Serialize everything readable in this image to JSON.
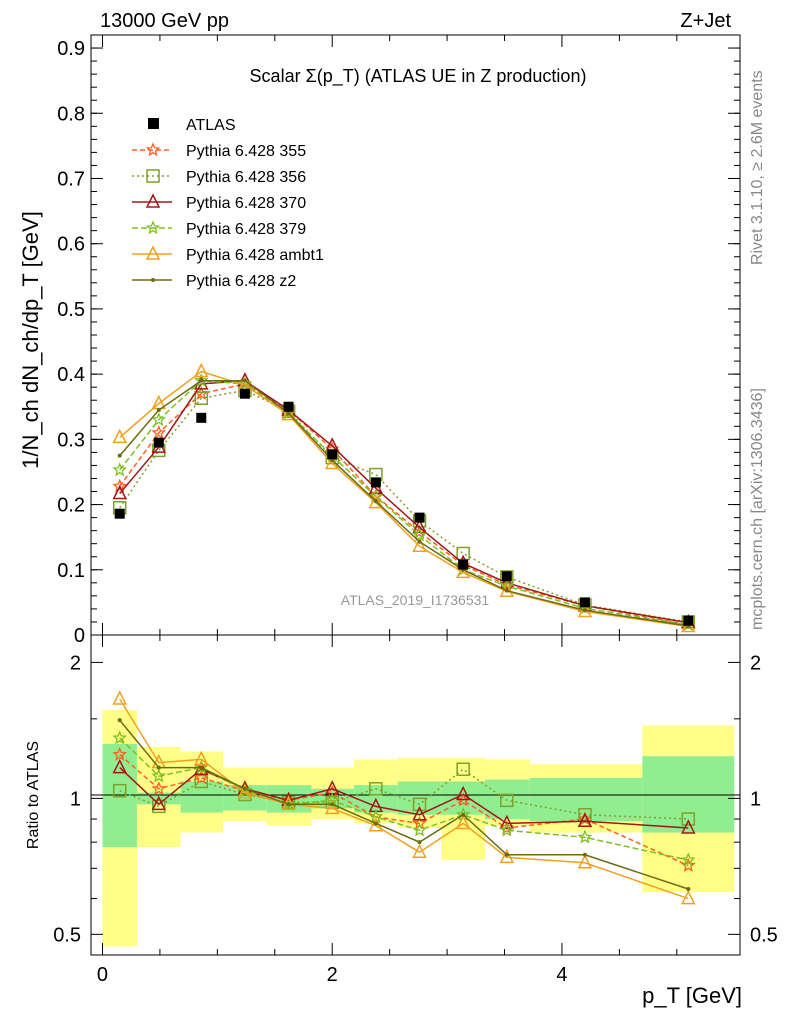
{
  "header": {
    "left": "13000 GeV pp",
    "right": "Z+Jet"
  },
  "side_labels": {
    "rivet": "Rivet 3.1.10, ≥ 2.6M events",
    "mcplots": "mcplots.cern.ch [arXiv:1306.3436]"
  },
  "chart_data": [
    {
      "type": "scatter",
      "title": "Scalar Σ(p_T) (ATLAS UE in Z production)",
      "ylabel": "1/N_ch dN_ch/dp_T [GeV]",
      "xlabel": "p_T [GeV]",
      "watermark": "ATLAS_2019_I1736531",
      "xlim": [
        -0.1,
        5.55
      ],
      "ylim": [
        0,
        0.92
      ],
      "yticks": [
        "0",
        "0.1",
        "0.2",
        "0.3",
        "0.4",
        "0.5",
        "0.6",
        "0.7",
        "0.8",
        "0.9"
      ],
      "legend_position": "top-left",
      "x": [
        0.15,
        0.49,
        0.86,
        1.24,
        1.62,
        2.0,
        2.38,
        2.76,
        3.14,
        3.52,
        4.2,
        5.1
      ],
      "data": {
        "name": "ATLAS",
        "values": [
          0.186,
          0.295,
          0.333,
          0.37,
          0.35,
          0.277,
          0.234,
          0.18,
          0.108,
          0.09,
          0.05,
          0.022
        ]
      },
      "series": [
        {
          "name": "Pythia 6.428 355",
          "color": "#ff6020",
          "values": [
            0.228,
            0.31,
            0.37,
            0.385,
            0.345,
            0.285,
            0.213,
            0.158,
            0.107,
            0.077,
            0.045,
            0.016
          ]
        },
        {
          "name": "Pythia 6.428 356",
          "color": "#7fa02a",
          "values": [
            0.195,
            0.283,
            0.363,
            0.375,
            0.343,
            0.272,
            0.246,
            0.175,
            0.125,
            0.089,
            0.046,
            0.02
          ]
        },
        {
          "name": "Pythia 6.428 370",
          "color": "#a01818",
          "values": [
            0.217,
            0.288,
            0.385,
            0.39,
            0.345,
            0.29,
            0.225,
            0.165,
            0.11,
            0.08,
            0.045,
            0.019
          ]
        },
        {
          "name": "Pythia 6.428 379",
          "color": "#7fbf20",
          "values": [
            0.253,
            0.33,
            0.39,
            0.385,
            0.34,
            0.275,
            0.212,
            0.153,
            0.1,
            0.075,
            0.041,
            0.016
          ]
        },
        {
          "name": "Pythia 6.428 ambt1",
          "color": "#f0a020",
          "values": [
            0.303,
            0.355,
            0.404,
            0.383,
            0.338,
            0.263,
            0.203,
            0.136,
            0.096,
            0.067,
            0.036,
            0.013
          ]
        },
        {
          "name": "Pythia 6.428 z2",
          "color": "#6b6b10",
          "values": [
            0.275,
            0.345,
            0.39,
            0.39,
            0.34,
            0.268,
            0.205,
            0.143,
            0.1,
            0.068,
            0.038,
            0.014
          ]
        }
      ]
    },
    {
      "type": "scatter",
      "ylabel": "Ratio to ATLAS",
      "xlabel": "p_T [GeV]",
      "ylim": [
        0.45,
        2.3
      ],
      "ylog": true,
      "yticks": [
        "0.5",
        "1",
        "2"
      ],
      "xticks": [
        "0",
        "2",
        "4"
      ],
      "x": [
        0.15,
        0.49,
        0.86,
        1.24,
        1.62,
        2.0,
        2.38,
        2.76,
        3.14,
        3.52,
        4.2,
        5.1
      ],
      "bins": [
        [
          0.0,
          0.3
        ],
        [
          0.3,
          0.68
        ],
        [
          0.68,
          1.05
        ],
        [
          1.05,
          1.43
        ],
        [
          1.43,
          1.82
        ],
        [
          1.82,
          2.19
        ],
        [
          2.19,
          2.57
        ],
        [
          2.57,
          2.95
        ],
        [
          2.95,
          3.33
        ],
        [
          3.33,
          3.72
        ],
        [
          3.72,
          4.7
        ],
        [
          4.7,
          5.5
        ]
      ],
      "band_inner": [
        [
          0.78,
          1.32
        ],
        [
          0.97,
          1.03
        ],
        [
          0.93,
          1.09
        ],
        [
          0.94,
          1.07
        ],
        [
          0.93,
          1.07
        ],
        [
          0.95,
          1.05
        ],
        [
          0.93,
          1.07
        ],
        [
          0.92,
          1.09
        ],
        [
          0.92,
          1.09
        ],
        [
          0.9,
          1.1
        ],
        [
          0.89,
          1.11
        ],
        [
          0.84,
          1.24
        ]
      ],
      "band_outer": [
        [
          0.47,
          1.57
        ],
        [
          0.78,
          1.3
        ],
        [
          0.84,
          1.27
        ],
        [
          0.89,
          1.17
        ],
        [
          0.87,
          1.17
        ],
        [
          0.9,
          1.17
        ],
        [
          0.88,
          1.22
        ],
        [
          0.86,
          1.23
        ],
        [
          0.73,
          1.23
        ],
        [
          0.87,
          1.22
        ],
        [
          0.84,
          1.19
        ],
        [
          0.62,
          1.45
        ]
      ],
      "series": [
        {
          "name": "Pythia 6.428 355",
          "color": "#ff6020",
          "values": [
            1.25,
            1.05,
            1.11,
            1.04,
            0.99,
            1.03,
            0.91,
            0.88,
            0.99,
            0.86,
            0.9,
            0.71
          ]
        },
        {
          "name": "Pythia 6.428 356",
          "color": "#7fa02a",
          "values": [
            1.04,
            0.96,
            1.09,
            1.02,
            0.98,
            0.98,
            1.05,
            0.97,
            1.16,
            0.99,
            0.92,
            0.9
          ]
        },
        {
          "name": "Pythia 6.428 370",
          "color": "#a01818",
          "values": [
            1.17,
            0.97,
            1.16,
            1.05,
            0.99,
            1.05,
            0.96,
            0.92,
            1.02,
            0.88,
            0.89,
            0.86
          ]
        },
        {
          "name": "Pythia 6.428 379",
          "color": "#7fbf20",
          "values": [
            1.36,
            1.12,
            1.17,
            1.04,
            0.97,
            0.99,
            0.91,
            0.85,
            0.92,
            0.85,
            0.82,
            0.73
          ]
        },
        {
          "name": "Pythia 6.428 ambt1",
          "color": "#f0a020",
          "values": [
            1.66,
            1.2,
            1.22,
            1.03,
            0.97,
            0.95,
            0.87,
            0.76,
            0.88,
            0.74,
            0.72,
            0.6
          ]
        },
        {
          "name": "Pythia 6.428 z2",
          "color": "#6b6b10",
          "values": [
            1.49,
            1.17,
            1.17,
            1.05,
            0.97,
            0.97,
            0.88,
            0.8,
            0.92,
            0.75,
            0.75,
            0.63
          ]
        }
      ]
    }
  ]
}
